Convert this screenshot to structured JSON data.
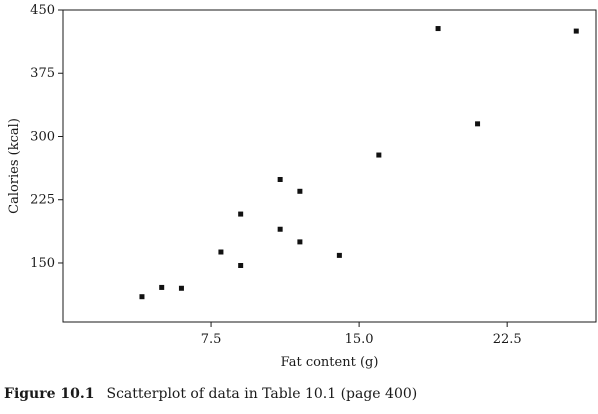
{
  "chart_data": {
    "type": "scatter",
    "xlabel": "Fat content (g)",
    "ylabel": "Calories (kcal)",
    "xlim": [
      0,
      27
    ],
    "ylim": [
      80,
      450
    ],
    "xticks": [
      7.5,
      15.0,
      22.5
    ],
    "xtick_labels": [
      "7.5",
      "15.0",
      "22.5"
    ],
    "yticks": [
      150,
      225,
      300,
      375,
      450
    ],
    "ytick_labels": [
      "150",
      "225",
      "300",
      "375",
      "450"
    ],
    "grid": false,
    "points": [
      {
        "x": 4,
        "y": 110
      },
      {
        "x": 5,
        "y": 121
      },
      {
        "x": 6,
        "y": 120
      },
      {
        "x": 8,
        "y": 163
      },
      {
        "x": 9,
        "y": 147
      },
      {
        "x": 9,
        "y": 208
      },
      {
        "x": 11,
        "y": 190
      },
      {
        "x": 11,
        "y": 249
      },
      {
        "x": 12,
        "y": 175
      },
      {
        "x": 12,
        "y": 235
      },
      {
        "x": 14,
        "y": 159
      },
      {
        "x": 16,
        "y": 278
      },
      {
        "x": 19,
        "y": 428
      },
      {
        "x": 21,
        "y": 315
      },
      {
        "x": 26,
        "y": 425
      }
    ],
    "marker_color": "#111111"
  },
  "caption": {
    "number": "Figure 10.1",
    "text": "Scatterplot of data in Table 10.1 (page 400)"
  }
}
